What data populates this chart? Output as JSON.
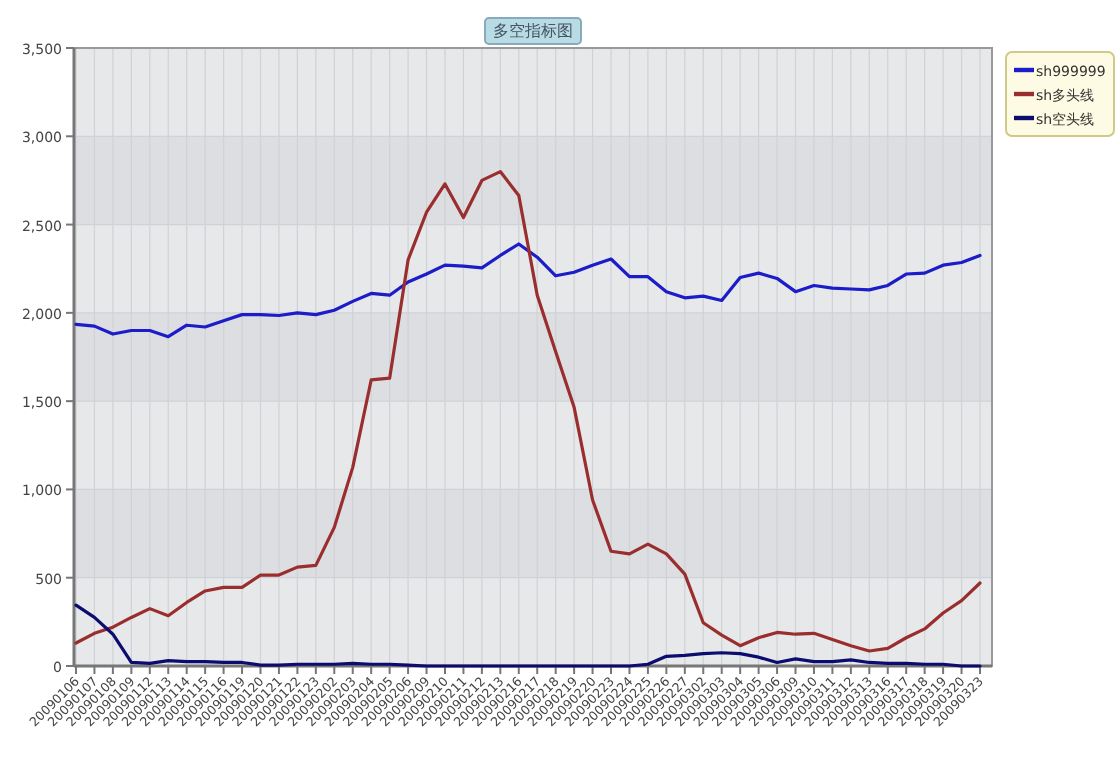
{
  "chart_data": {
    "type": "line",
    "title": "多空指标图",
    "categories": [
      "20090106",
      "20090107",
      "20090108",
      "20090109",
      "20090112",
      "20090113",
      "20090114",
      "20090115",
      "20090116",
      "20090119",
      "20090120",
      "20090121",
      "20090122",
      "20090123",
      "20090202",
      "20090203",
      "20090204",
      "20090205",
      "20090206",
      "20090209",
      "20090210",
      "20090211",
      "20090212",
      "20090213",
      "20090216",
      "20090217",
      "20090218",
      "20090219",
      "20090220",
      "20090223",
      "20090224",
      "20090225",
      "20090226",
      "20090227",
      "20090302",
      "20090303",
      "20090304",
      "20090305",
      "20090306",
      "20090309",
      "20090310",
      "20090311",
      "20090312",
      "20090313",
      "20090316",
      "20090317",
      "20090318",
      "20090319",
      "20090320",
      "20090323"
    ],
    "series": [
      {
        "name": "sh999999",
        "color": "#1c1cc8",
        "values": [
          1935,
          1925,
          1880,
          1900,
          1900,
          1865,
          1930,
          1920,
          1955,
          1990,
          1990,
          1985,
          2000,
          1990,
          2015,
          2065,
          2110,
          2100,
          2175,
          2220,
          2270,
          2265,
          2255,
          2325,
          2390,
          2315,
          2210,
          2230,
          2270,
          2305,
          2205,
          2205,
          2120,
          2085,
          2095,
          2070,
          2200,
          2225,
          2195,
          2120,
          2155,
          2140,
          2135,
          2130,
          2155,
          2220,
          2225,
          2270,
          2285,
          2325
        ]
      },
      {
        "name": "sh多头线",
        "color": "#9a2e2e",
        "values": [
          130,
          185,
          220,
          275,
          325,
          285,
          360,
          425,
          445,
          445,
          515,
          515,
          560,
          570,
          785,
          1125,
          1620,
          1630,
          2300,
          2570,
          2730,
          2540,
          2750,
          2800,
          2665,
          2100,
          1780,
          1465,
          940,
          650,
          635,
          690,
          635,
          520,
          245,
          175,
          115,
          160,
          190,
          180,
          185,
          150,
          115,
          85,
          100,
          160,
          210,
          300,
          370,
          470
        ]
      },
      {
        "name": "sh空头线",
        "color": "#0c0c70",
        "values": [
          345,
          275,
          180,
          20,
          15,
          30,
          25,
          25,
          20,
          20,
          5,
          5,
          10,
          10,
          10,
          15,
          10,
          10,
          5,
          0,
          0,
          0,
          0,
          0,
          0,
          0,
          0,
          0,
          0,
          0,
          0,
          10,
          55,
          60,
          70,
          75,
          70,
          50,
          20,
          40,
          25,
          25,
          35,
          20,
          15,
          15,
          10,
          10,
          0,
          0
        ]
      }
    ],
    "ylim": [
      0,
      3500
    ],
    "yticks": [
      0,
      {
        "value": 500,
        "label": "500"
      },
      {
        "value": 1000,
        "label": "1,000"
      },
      {
        "value": 1500,
        "label": "1,500"
      },
      {
        "value": 2000,
        "label": "2,000"
      },
      {
        "value": 2500,
        "label": "2,500"
      },
      {
        "value": 3000,
        "label": "3,000"
      },
      {
        "value": 3500,
        "label": "3,500"
      }
    ],
    "grid": true,
    "legend": "top right",
    "marker": "none",
    "line_style": "solid"
  }
}
